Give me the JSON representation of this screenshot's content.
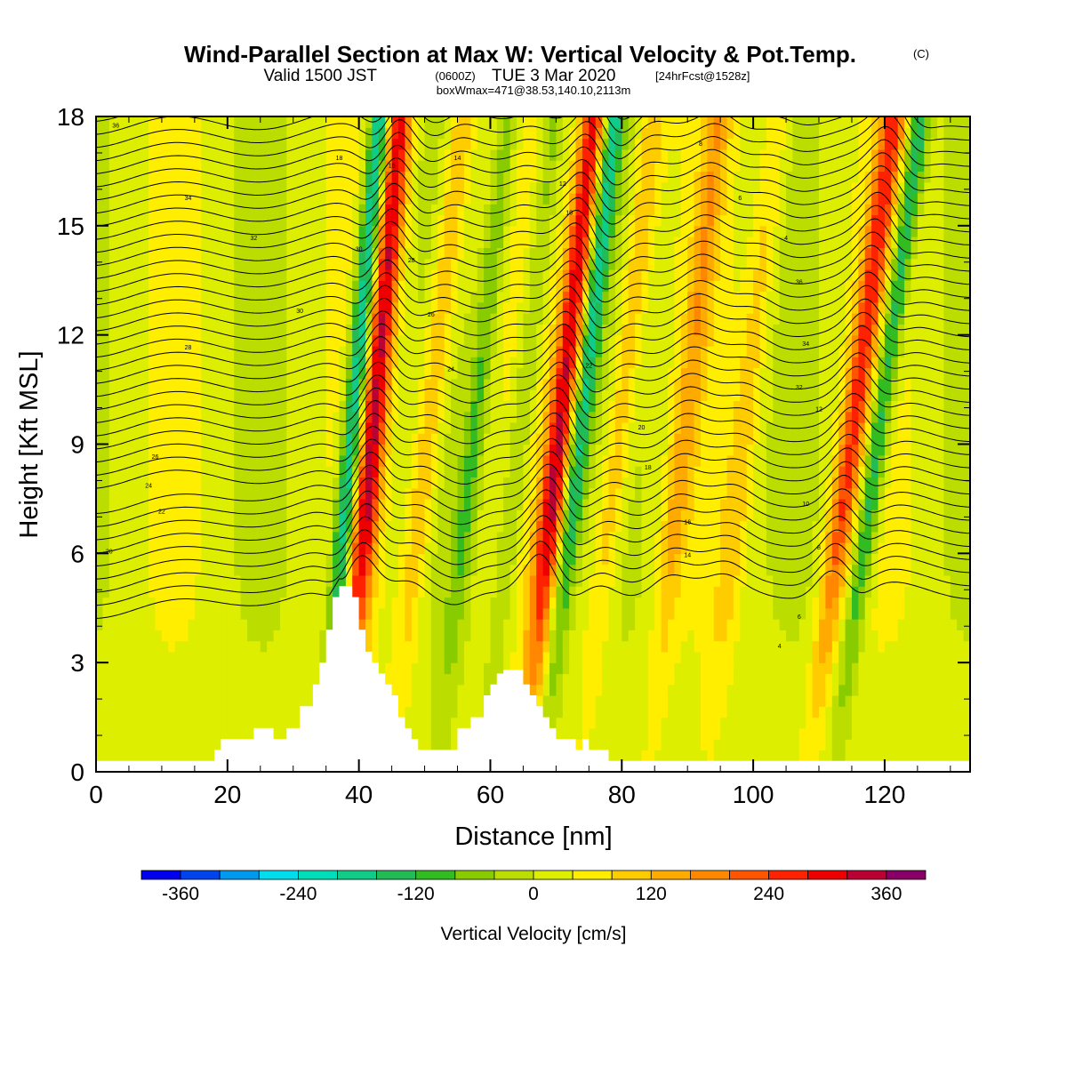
{
  "title": {
    "main": "Wind-Parallel Section at Max W: Vertical Velocity & Pot.Temp.",
    "main_suffix": "(C)",
    "valid_prefix": "Valid 1500 JST",
    "valid_utc": "(0600Z)",
    "valid_date": "TUE 3 Mar 2020",
    "forecast": "[24hrFcst@1528z]",
    "box_info": "boxWmax=471@38.53,140.10,2113m"
  },
  "colorbar": {
    "title": "Vertical Velocity [cm/s]",
    "tick_labels": [
      "-360",
      "-240",
      "-120",
      "0",
      "120",
      "240",
      "360"
    ],
    "tick_values": [
      -360,
      -240,
      -120,
      0,
      120,
      240,
      360
    ],
    "levels": [
      -400,
      -360,
      -320,
      -280,
      -240,
      -200,
      -160,
      -120,
      -80,
      -40,
      0,
      40,
      80,
      120,
      160,
      200,
      240,
      280,
      320,
      360,
      400
    ],
    "colors": [
      "#0000ee",
      "#0044ee",
      "#0099ee",
      "#00ddee",
      "#00ddbb",
      "#11cc88",
      "#22bb55",
      "#33bb22",
      "#88cc00",
      "#bbdd00",
      "#ddee00",
      "#ffee00",
      "#ffcc00",
      "#ffaa00",
      "#ff8800",
      "#ff5500",
      "#ff2200",
      "#ee0000",
      "#bb0033",
      "#880066"
    ]
  },
  "chart_data": {
    "type": "heatmap",
    "xlabel": "Distance [nm]",
    "ylabel": "Height [Kft MSL]",
    "xlim": [
      0,
      133
    ],
    "ylim": [
      0,
      18
    ],
    "x_ticks": [
      0,
      20,
      40,
      60,
      80,
      100,
      120
    ],
    "y_ticks": [
      0,
      3,
      6,
      9,
      12,
      15,
      18
    ],
    "field": "Vertical Velocity (cm/s)",
    "bands": [
      {
        "x": 40,
        "sign": "up",
        "peak": 300,
        "tilt": 0.4
      },
      {
        "x": 37,
        "sign": "down",
        "peak": -260,
        "tilt": 0.4
      },
      {
        "x": 48,
        "sign": "up",
        "peak": 120,
        "tilt": 0.5
      },
      {
        "x": 68,
        "sign": "up",
        "peak": 300,
        "tilt": 0.5
      },
      {
        "x": 71,
        "sign": "down",
        "peak": -200,
        "tilt": 0.5
      },
      {
        "x": 77,
        "sign": "up",
        "peak": 110,
        "tilt": 0.5
      },
      {
        "x": 87,
        "sign": "up",
        "peak": 110,
        "tilt": 0.5
      },
      {
        "x": 96,
        "sign": "up",
        "peak": 80,
        "tilt": 0.5
      },
      {
        "x": 112,
        "sign": "up",
        "peak": 220,
        "tilt": 0.6
      },
      {
        "x": 116,
        "sign": "down",
        "peak": -180,
        "tilt": 0.6
      },
      {
        "x": 55,
        "sign": "down",
        "peak": -100,
        "tilt": 0.5
      },
      {
        "x": 62,
        "sign": "down",
        "peak": -90,
        "tilt": 0.5
      }
    ],
    "terrain": {
      "x_nm": [
        0,
        17,
        18,
        19,
        21,
        24,
        27,
        29,
        31,
        33,
        34,
        35,
        36,
        37,
        38,
        39,
        40,
        41,
        42,
        43,
        44,
        45,
        46,
        47,
        48,
        49,
        50,
        52,
        55,
        57,
        59,
        60,
        61,
        62,
        63,
        64,
        65,
        66,
        67,
        68,
        69,
        70,
        71,
        73,
        74,
        75,
        76,
        77,
        78,
        80,
        133
      ],
      "height_kft": [
        0.3,
        0.3,
        0.6,
        0.9,
        0.9,
        1.2,
        0.9,
        1.2,
        1.8,
        2.4,
        3.0,
        3.9,
        4.8,
        5.1,
        5.1,
        4.8,
        3.9,
        3.3,
        3.0,
        2.7,
        2.4,
        2.1,
        1.5,
        1.2,
        0.9,
        0.6,
        0.6,
        0.6,
        1.2,
        1.5,
        2.1,
        2.4,
        2.7,
        2.8,
        2.8,
        2.8,
        2.4,
        2.1,
        1.8,
        1.5,
        1.2,
        0.9,
        0.9,
        0.6,
        0.9,
        0.6,
        0.6,
        0.6,
        0.3,
        0.3,
        0.3
      ]
    },
    "potential_temperature": {
      "units": "C",
      "contour_interval": 1,
      "range": [
        -2,
        36
      ],
      "visible_labels": [
        "36",
        "34",
        "32",
        "30",
        "28",
        "26",
        "24",
        "22",
        "20",
        "18",
        "16",
        "14",
        "12",
        "10",
        "8",
        "6",
        "4"
      ]
    }
  }
}
